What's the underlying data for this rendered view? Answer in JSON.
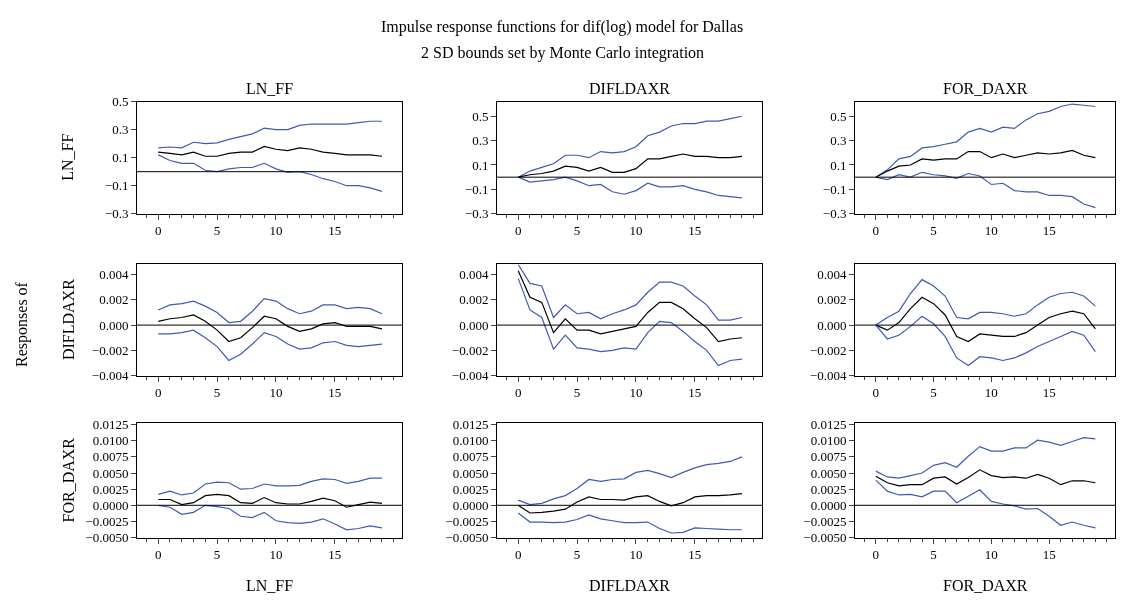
{
  "chart_data": [
    {
      "type": "line",
      "title": "LN_FF",
      "ylabel": "LN_FF",
      "annotations": [
        "Impulse response functions for dif(log) model for Dallas",
        "2 SD bounds set by Monte Carlo integration",
        "Responses of"
      ],
      "x": [
        0,
        1,
        2,
        3,
        4,
        5,
        6,
        7,
        8,
        9,
        10,
        11,
        12,
        13,
        14,
        15,
        16,
        17,
        18,
        19
      ],
      "xlim": [
        -1.8,
        20.7
      ],
      "xticks": [
        0,
        5,
        10,
        15
      ],
      "ylim": [
        -0.3,
        0.5
      ],
      "yticks": [
        0.5,
        0.3,
        0.1,
        {
          "value": -0.1,
          "label": "−0.1"
        },
        {
          "value": -0.3,
          "label": "−0.3"
        }
      ],
      "grid": false,
      "legend": false,
      "ref_lines": [
        {
          "axis": "y",
          "value": 0,
          "color": "#000000"
        }
      ],
      "series": [
        {
          "color": "#3d5bb5",
          "values": [
            0.17,
            0.176,
            0.17,
            0.21,
            0.2,
            0.205,
            0.23,
            0.25,
            0.27,
            0.31,
            0.3,
            0.3,
            0.33,
            0.34,
            0.34,
            0.34,
            0.34,
            0.35,
            0.36,
            0.36
          ]
        },
        {
          "color": "#000000",
          "values": [
            0.14,
            0.13,
            0.12,
            0.14,
            0.11,
            0.11,
            0.13,
            0.14,
            0.14,
            0.18,
            0.16,
            0.15,
            0.17,
            0.16,
            0.14,
            0.13,
            0.12,
            0.12,
            0.12,
            0.11
          ]
        },
        {
          "color": "#3d5bb5",
          "values": [
            0.12,
            0.08,
            0.06,
            0.06,
            0.01,
            0.0,
            0.02,
            0.03,
            0.03,
            0.06,
            0.02,
            -0.005,
            0.0,
            -0.02,
            -0.05,
            -0.07,
            -0.1,
            -0.1,
            -0.115,
            -0.14
          ]
        }
      ]
    },
    {
      "type": "line",
      "title": "DIFLDAXR",
      "x": [
        0,
        1,
        2,
        3,
        4,
        5,
        6,
        7,
        8,
        9,
        10,
        11,
        12,
        13,
        14,
        15,
        16,
        17,
        18,
        19
      ],
      "xlim": [
        -1.8,
        20.7
      ],
      "xticks": [
        0,
        5,
        10,
        15
      ],
      "ylim": [
        -0.3,
        0.62
      ],
      "yticks": [
        0.5,
        0.3,
        0.1,
        {
          "value": -0.1,
          "label": "−0.1"
        },
        {
          "value": -0.3,
          "label": "−0.3"
        }
      ],
      "grid": false,
      "legend": false,
      "ref_lines": [
        {
          "axis": "y",
          "value": 0,
          "color": "#000000"
        }
      ],
      "series": [
        {
          "color": "#3d5bb5",
          "values": [
            0,
            0.05,
            0.08,
            0.11,
            0.18,
            0.18,
            0.16,
            0.21,
            0.2,
            0.21,
            0.25,
            0.34,
            0.37,
            0.42,
            0.44,
            0.44,
            0.46,
            0.46,
            0.48,
            0.5
          ]
        },
        {
          "color": "#000000",
          "values": [
            0,
            0.02,
            0.03,
            0.05,
            0.09,
            0.08,
            0.05,
            0.08,
            0.04,
            0.04,
            0.07,
            0.15,
            0.15,
            0.17,
            0.19,
            0.17,
            0.17,
            0.16,
            0.16,
            0.17
          ]
        },
        {
          "color": "#3d5bb5",
          "values": [
            0,
            -0.04,
            -0.03,
            -0.02,
            0.0,
            -0.03,
            -0.07,
            -0.06,
            -0.12,
            -0.14,
            -0.11,
            -0.05,
            -0.08,
            -0.08,
            -0.07,
            -0.1,
            -0.12,
            -0.15,
            -0.16,
            -0.17
          ]
        }
      ]
    },
    {
      "type": "line",
      "title": "FOR_DAXR",
      "x": [
        0,
        1,
        2,
        3,
        4,
        5,
        6,
        7,
        8,
        9,
        10,
        11,
        12,
        13,
        14,
        15,
        16,
        17,
        18,
        19
      ],
      "xlim": [
        -1.8,
        20.7
      ],
      "xticks": [
        0,
        5,
        10,
        15
      ],
      "ylim": [
        -0.3,
        0.62
      ],
      "yticks": [
        0.5,
        0.3,
        0.1,
        {
          "value": -0.1,
          "label": "−0.1"
        },
        {
          "value": -0.3,
          "label": "−0.3"
        }
      ],
      "grid": false,
      "legend": false,
      "ref_lines": [
        {
          "axis": "y",
          "value": 0,
          "color": "#000000"
        }
      ],
      "series": [
        {
          "color": "#3d5bb5",
          "values": [
            0,
            0.06,
            0.15,
            0.17,
            0.24,
            0.25,
            0.27,
            0.29,
            0.37,
            0.4,
            0.37,
            0.41,
            0.4,
            0.47,
            0.52,
            0.54,
            0.58,
            0.6,
            0.59,
            0.58
          ]
        },
        {
          "color": "#000000",
          "values": [
            0,
            0.05,
            0.09,
            0.1,
            0.15,
            0.14,
            0.15,
            0.15,
            0.21,
            0.21,
            0.16,
            0.19,
            0.16,
            0.18,
            0.2,
            0.19,
            0.2,
            0.22,
            0.18,
            0.16
          ]
        },
        {
          "color": "#3d5bb5",
          "values": [
            0,
            -0.02,
            0.02,
            0.0,
            0.04,
            0.02,
            0.01,
            -0.01,
            0.03,
            0.01,
            -0.06,
            -0.05,
            -0.11,
            -0.12,
            -0.12,
            -0.15,
            -0.15,
            -0.16,
            -0.22,
            -0.25
          ]
        }
      ]
    },
    {
      "type": "line",
      "ylabel": "DIFLDAXR",
      "x": [
        0,
        1,
        2,
        3,
        4,
        5,
        6,
        7,
        8,
        9,
        10,
        11,
        12,
        13,
        14,
        15,
        16,
        17,
        18,
        19
      ],
      "xlim": [
        -1.8,
        20.7
      ],
      "xticks": [
        0,
        5,
        10,
        15
      ],
      "ylim": [
        -0.004,
        0.0048
      ],
      "yticks": [
        0.004,
        0.002,
        {
          "value": 0,
          "label": "0.000"
        },
        {
          "value": -0.002,
          "label": "−0.002"
        },
        {
          "value": -0.004,
          "label": "−0.004"
        }
      ],
      "grid": false,
      "legend": false,
      "ref_lines": [
        {
          "axis": "y",
          "value": 0,
          "color": "#000000"
        }
      ],
      "series": [
        {
          "color": "#3d5bb5",
          "values": [
            0.0012,
            0.0016,
            0.0017,
            0.0019,
            0.0015,
            0.001,
            0.0002,
            0.0003,
            0.0011,
            0.0021,
            0.0019,
            0.0013,
            0.0009,
            0.0011,
            0.0016,
            0.0016,
            0.0013,
            0.0014,
            0.0013,
            0.0009
          ]
        },
        {
          "color": "#000000",
          "values": [
            0.0003,
            0.0005,
            0.0006,
            0.0008,
            0.0003,
            -0.0004,
            -0.0013,
            -0.001,
            -0.0002,
            0.0007,
            0.0005,
            -0.0001,
            -0.0005,
            -0.0003,
            0.0001,
            0.0002,
            -0.0001,
            -0.0001,
            -0.0001,
            -0.0003
          ]
        },
        {
          "color": "#3d5bb5",
          "values": [
            -0.0007,
            -0.0007,
            -0.0006,
            -0.0004,
            -0.001,
            -0.0017,
            -0.0028,
            -0.0023,
            -0.0015,
            -0.0006,
            -0.0009,
            -0.0015,
            -0.0019,
            -0.0018,
            -0.0014,
            -0.0013,
            -0.0016,
            -0.0017,
            -0.0016,
            -0.0015
          ]
        }
      ]
    },
    {
      "type": "line",
      "x": [
        0,
        1,
        2,
        3,
        4,
        5,
        6,
        7,
        8,
        9,
        10,
        11,
        12,
        13,
        14,
        15,
        16,
        17,
        18,
        19
      ],
      "xlim": [
        -1.8,
        20.7
      ],
      "xticks": [
        0,
        5,
        10,
        15
      ],
      "ylim": [
        -0.004,
        0.0048
      ],
      "yticks": [
        0.004,
        0.002,
        {
          "value": 0,
          "label": "0.000"
        },
        {
          "value": -0.002,
          "label": "−0.002"
        },
        {
          "value": -0.004,
          "label": "−0.004"
        }
      ],
      "grid": false,
      "legend": false,
      "ref_lines": [
        {
          "axis": "y",
          "value": 0,
          "color": "#000000"
        }
      ],
      "series": [
        {
          "color": "#3d5bb5",
          "values": [
            0.0048,
            0.0033,
            0.0031,
            0.0006,
            0.0016,
            0.0009,
            0.001,
            0.0005,
            0.0009,
            0.0012,
            0.0016,
            0.0026,
            0.0034,
            0.0034,
            0.0031,
            0.0023,
            0.0016,
            0.0004,
            0.0004,
            0.0006
          ]
        },
        {
          "color": "#000000",
          "values": [
            0.0043,
            0.0022,
            0.0018,
            -0.0006,
            0.0005,
            -0.0004,
            -0.0004,
            -0.0007,
            -0.0005,
            -0.0003,
            -0.0001,
            0.001,
            0.0018,
            0.0018,
            0.0013,
            0.0005,
            -0.0002,
            -0.0013,
            -0.0011,
            -0.001
          ]
        },
        {
          "color": "#3d5bb5",
          "values": [
            0.0037,
            0.0012,
            0.0006,
            -0.0019,
            -0.0008,
            -0.0018,
            -0.0019,
            -0.0021,
            -0.002,
            -0.0018,
            -0.0019,
            -0.0006,
            0.0003,
            0.0002,
            -0.0005,
            -0.0013,
            -0.002,
            -0.0032,
            -0.0028,
            -0.0027
          ]
        }
      ]
    },
    {
      "type": "line",
      "x": [
        0,
        1,
        2,
        3,
        4,
        5,
        6,
        7,
        8,
        9,
        10,
        11,
        12,
        13,
        14,
        15,
        16,
        17,
        18,
        19
      ],
      "xlim": [
        -1.8,
        20.7
      ],
      "xticks": [
        0,
        5,
        10,
        15
      ],
      "ylim": [
        -0.004,
        0.0048
      ],
      "yticks": [
        0.004,
        0.002,
        {
          "value": 0,
          "label": "0.000"
        },
        {
          "value": -0.002,
          "label": "−0.002"
        },
        {
          "value": -0.004,
          "label": "−0.004"
        }
      ],
      "grid": false,
      "legend": false,
      "ref_lines": [
        {
          "axis": "y",
          "value": 0,
          "color": "#000000"
        }
      ],
      "series": [
        {
          "color": "#3d5bb5",
          "values": [
            0,
            0.0006,
            0.0011,
            0.0025,
            0.0036,
            0.0031,
            0.0023,
            0.0006,
            0.0005,
            0.001,
            0.001,
            0.0009,
            0.0007,
            0.0009,
            0.0016,
            0.0022,
            0.0025,
            0.0026,
            0.0023,
            0.0015
          ]
        },
        {
          "color": "#000000",
          "values": [
            0,
            -0.0004,
            0.0002,
            0.0013,
            0.0022,
            0.0017,
            0.0008,
            -0.0009,
            -0.0013,
            -0.0007,
            -0.0008,
            -0.0009,
            -0.0009,
            -0.0006,
            0.0,
            0.0006,
            0.0009,
            0.0011,
            0.0009,
            -0.0003
          ]
        },
        {
          "color": "#3d5bb5",
          "values": [
            0,
            -0.0011,
            -0.0008,
            -0.0001,
            0.0007,
            0.0001,
            -0.0009,
            -0.0026,
            -0.0032,
            -0.0025,
            -0.0026,
            -0.0028,
            -0.0026,
            -0.0022,
            -0.0017,
            -0.0013,
            -0.0009,
            -0.0005,
            -0.0008,
            -0.0021
          ]
        }
      ]
    },
    {
      "type": "line",
      "xlabel": "LN_FF",
      "ylabel": "FOR_DAXR",
      "x": [
        0,
        1,
        2,
        3,
        4,
        5,
        6,
        7,
        8,
        9,
        10,
        11,
        12,
        13,
        14,
        15,
        16,
        17,
        18,
        19
      ],
      "xlim": [
        -1.8,
        20.7
      ],
      "xticks": [
        0,
        5,
        10,
        15
      ],
      "ylim": [
        -0.005,
        0.0127
      ],
      "yticks": [
        0.0125,
        {
          "value": 0.01,
          "label": "0.0100"
        },
        0.0075,
        {
          "value": 0.005,
          "label": "0.0050"
        },
        0.0025,
        {
          "value": 0,
          "label": "0.0000"
        },
        {
          "value": -0.0025,
          "label": "−0.0025"
        },
        {
          "value": -0.005,
          "label": "−0.0050"
        }
      ],
      "grid": false,
      "legend": false,
      "ref_lines": [
        {
          "axis": "y",
          "value": 0,
          "color": "#000000"
        }
      ],
      "series": [
        {
          "color": "#3d5bb5",
          "values": [
            0.0017,
            0.0022,
            0.0016,
            0.0019,
            0.0033,
            0.0036,
            0.0035,
            0.0025,
            0.0026,
            0.0033,
            0.003,
            0.003,
            0.0031,
            0.0037,
            0.0041,
            0.004,
            0.0034,
            0.0037,
            0.0042,
            0.0042
          ]
        },
        {
          "color": "#000000",
          "values": [
            0.0009,
            0.0009,
            0.0001,
            0.0004,
            0.0015,
            0.0017,
            0.0015,
            0.0004,
            0.0003,
            0.0012,
            0.0004,
            0.0002,
            0.0002,
            0.0006,
            0.0011,
            0.0007,
            -0.0003,
            0.0001,
            0.0005,
            0.0003
          ]
        },
        {
          "color": "#3d5bb5",
          "values": [
            0,
            -0.0003,
            -0.0014,
            -0.0011,
            0,
            -0.0002,
            -0.0005,
            -0.0017,
            -0.0019,
            -0.0011,
            -0.0024,
            -0.0027,
            -0.0028,
            -0.0026,
            -0.0021,
            -0.0029,
            -0.0038,
            -0.0036,
            -0.0032,
            -0.0035
          ]
        }
      ]
    },
    {
      "type": "line",
      "xlabel": "DIFLDAXR",
      "x": [
        0,
        1,
        2,
        3,
        4,
        5,
        6,
        7,
        8,
        9,
        10,
        11,
        12,
        13,
        14,
        15,
        16,
        17,
        18,
        19
      ],
      "xlim": [
        -1.8,
        20.7
      ],
      "xticks": [
        0,
        5,
        10,
        15
      ],
      "ylim": [
        -0.005,
        0.0127
      ],
      "yticks": [
        0.0125,
        {
          "value": 0.01,
          "label": "0.0100"
        },
        0.0075,
        {
          "value": 0.005,
          "label": "0.0050"
        },
        0.0025,
        {
          "value": 0,
          "label": "0.0000"
        },
        {
          "value": -0.0025,
          "label": "−0.0025"
        },
        {
          "value": -0.005,
          "label": "−0.0050"
        }
      ],
      "grid": false,
      "legend": false,
      "ref_lines": [
        {
          "axis": "y",
          "value": 0,
          "color": "#000000"
        }
      ],
      "series": [
        {
          "color": "#3d5bb5",
          "values": [
            0.0008,
            0.0001,
            0.0003,
            0.001,
            0.0015,
            0.0026,
            0.004,
            0.0037,
            0.004,
            0.0041,
            0.0051,
            0.0054,
            0.0049,
            0.0043,
            0.0051,
            0.0058,
            0.0063,
            0.0065,
            0.0068,
            0.0075
          ]
        },
        {
          "color": "#000000",
          "values": [
            0,
            -0.0012,
            -0.0011,
            -0.0009,
            -0.0006,
            0.0005,
            0.0013,
            0.0009,
            0.0009,
            0.0008,
            0.0013,
            0.0015,
            0.0006,
            -0.0001,
            0.0004,
            0.0013,
            0.0015,
            0.0015,
            0.0016,
            0.0018
          ]
        },
        {
          "color": "#3d5bb5",
          "values": [
            -0.0012,
            -0.0026,
            -0.0026,
            -0.0027,
            -0.0026,
            -0.0022,
            -0.0015,
            -0.0021,
            -0.0024,
            -0.0027,
            -0.0027,
            -0.0026,
            -0.0036,
            -0.0043,
            -0.0042,
            -0.0035,
            -0.0036,
            -0.0037,
            -0.0038,
            -0.0038
          ]
        }
      ]
    },
    {
      "type": "line",
      "xlabel": "FOR_DAXR",
      "x": [
        0,
        1,
        2,
        3,
        4,
        5,
        6,
        7,
        8,
        9,
        10,
        11,
        12,
        13,
        14,
        15,
        16,
        17,
        18,
        19
      ],
      "xlim": [
        -1.8,
        20.7
      ],
      "xticks": [
        0,
        5,
        10,
        15
      ],
      "ylim": [
        -0.005,
        0.0127
      ],
      "yticks": [
        0.0125,
        {
          "value": 0.01,
          "label": "0.0100"
        },
        0.0075,
        {
          "value": 0.005,
          "label": "0.0050"
        },
        0.0025,
        {
          "value": 0,
          "label": "0.0000"
        },
        {
          "value": -0.0025,
          "label": "−0.0025"
        },
        {
          "value": -0.005,
          "label": "−0.0050"
        }
      ],
      "grid": false,
      "legend": false,
      "ref_lines": [
        {
          "axis": "y",
          "value": 0,
          "color": "#000000"
        }
      ],
      "series": [
        {
          "color": "#3d5bb5",
          "values": [
            0.0053,
            0.0044,
            0.0042,
            0.0046,
            0.005,
            0.0062,
            0.0066,
            0.0059,
            0.0076,
            0.0091,
            0.0084,
            0.0084,
            0.0089,
            0.0089,
            0.0101,
            0.0098,
            0.0093,
            0.0099,
            0.0105,
            0.0103
          ]
        },
        {
          "color": "#000000",
          "values": [
            0.0045,
            0.0035,
            0.003,
            0.0032,
            0.0032,
            0.0042,
            0.0044,
            0.0033,
            0.0043,
            0.0055,
            0.0046,
            0.0043,
            0.0044,
            0.0042,
            0.0048,
            0.0042,
            0.0032,
            0.0038,
            0.0038,
            0.0035
          ]
        },
        {
          "color": "#3d5bb5",
          "values": [
            0.0039,
            0.0022,
            0.0016,
            0.0017,
            0.0013,
            0.0022,
            0.0022,
            0.0004,
            0.0014,
            0.0024,
            0.0006,
            0.0002,
            -0.0001,
            -0.0006,
            -0.0005,
            -0.0017,
            -0.0031,
            -0.0026,
            -0.0031,
            -0.0035
          ]
        }
      ]
    }
  ]
}
